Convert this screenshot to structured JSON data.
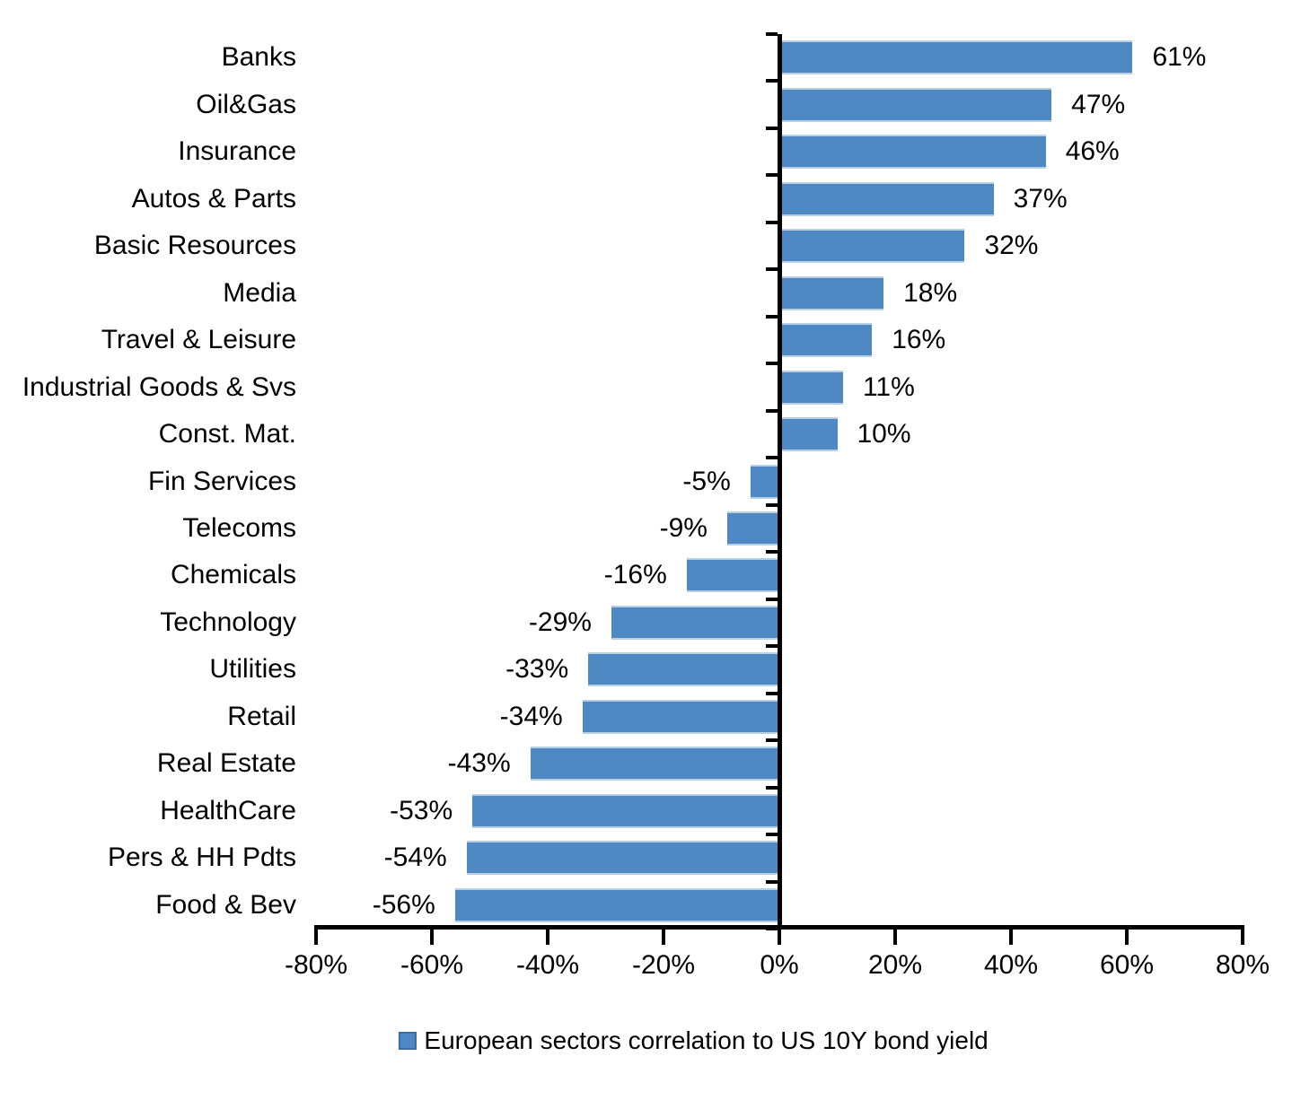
{
  "chart_data": {
    "type": "bar",
    "orientation": "horizontal",
    "title": "",
    "xlabel": "",
    "ylabel": "",
    "categories": [
      "Banks",
      "Oil&Gas",
      "Insurance",
      "Autos & Parts",
      "Basic Resources",
      "Media",
      "Travel & Leisure",
      "Industrial Goods & Svs",
      "Const. Mat.",
      "Fin Services",
      "Telecoms",
      "Chemicals",
      "Technology",
      "Utilities",
      "Retail",
      "Real Estate",
      "HealthCare",
      "Pers & HH Pdts",
      "Food & Bev"
    ],
    "values": [
      61,
      47,
      46,
      37,
      32,
      18,
      16,
      11,
      10,
      -5,
      -9,
      -16,
      -29,
      -33,
      -34,
      -43,
      -53,
      -54,
      -56
    ],
    "value_labels": [
      "61%",
      "47%",
      "46%",
      "37%",
      "32%",
      "18%",
      "16%",
      "11%",
      "10%",
      "-5%",
      "-9%",
      "-16%",
      "-29%",
      "-33%",
      "-34%",
      "-43%",
      "-53%",
      "-54%",
      "-56%"
    ],
    "xlim": [
      -80,
      80
    ],
    "x_tick_values": [
      -80,
      -60,
      -40,
      -20,
      0,
      20,
      40,
      60,
      80
    ],
    "x_tick_labels": [
      "-80%",
      "-60%",
      "-40%",
      "-20%",
      "0%",
      "20%",
      "40%",
      "60%",
      "80%"
    ],
    "grid": false,
    "bar_color": "#4E89C4",
    "axis_color": "#000000",
    "legend": {
      "position": "bottom",
      "label": "European sectors correlation to US 10Y bond yield",
      "swatch_color": "#4E89C4"
    }
  }
}
